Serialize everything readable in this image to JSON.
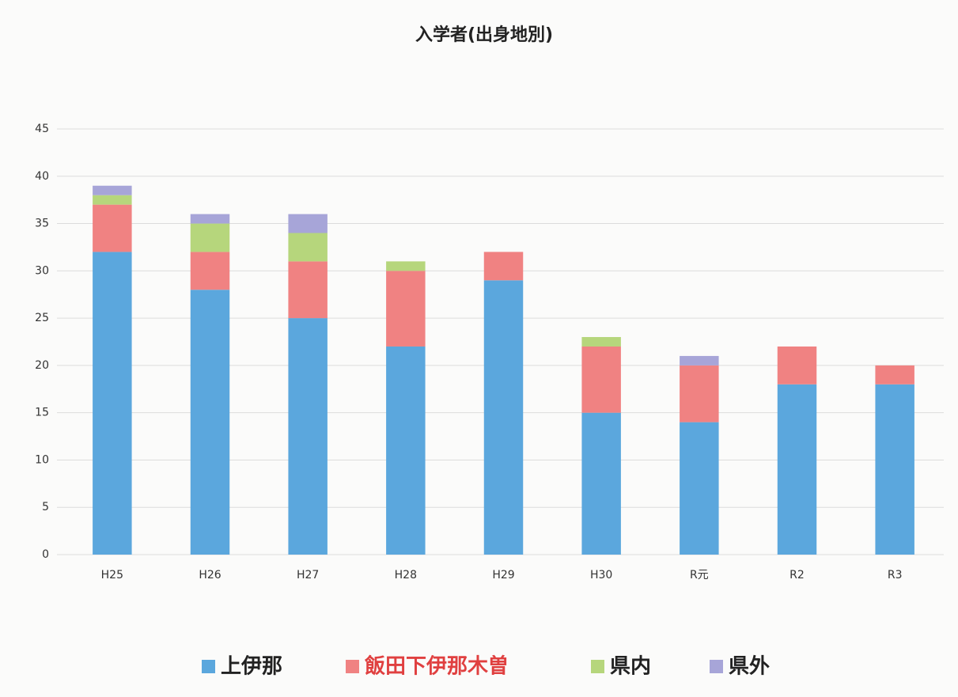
{
  "chart_data": {
    "type": "stacked_bar",
    "title": "入学者(出身地別)",
    "categories": [
      "H25",
      "H26",
      "H27",
      "H28",
      "H29",
      "H30",
      "R元",
      "R2",
      "R3"
    ],
    "series": [
      {
        "name": "上伊那",
        "color": "#5ba7dd",
        "values": [
          32,
          28,
          25,
          22,
          29,
          15,
          14,
          18,
          18
        ]
      },
      {
        "name": "飯田下伊那木曽",
        "color": "#f08282",
        "values": [
          5,
          4,
          6,
          8,
          3,
          7,
          6,
          4,
          2
        ]
      },
      {
        "name": "県内",
        "color": "#b6d67c",
        "values": [
          1,
          3,
          3,
          1,
          0,
          1,
          0,
          0,
          0
        ]
      },
      {
        "name": "県外",
        "color": "#a7a5d8",
        "values": [
          1,
          1,
          2,
          0,
          0,
          0,
          1,
          0,
          0
        ]
      }
    ],
    "ylim": [
      0,
      45
    ],
    "yticks": [
      0,
      5,
      10,
      15,
      20,
      25,
      30,
      35,
      40,
      45
    ],
    "grid": true,
    "legend": "bottom"
  }
}
